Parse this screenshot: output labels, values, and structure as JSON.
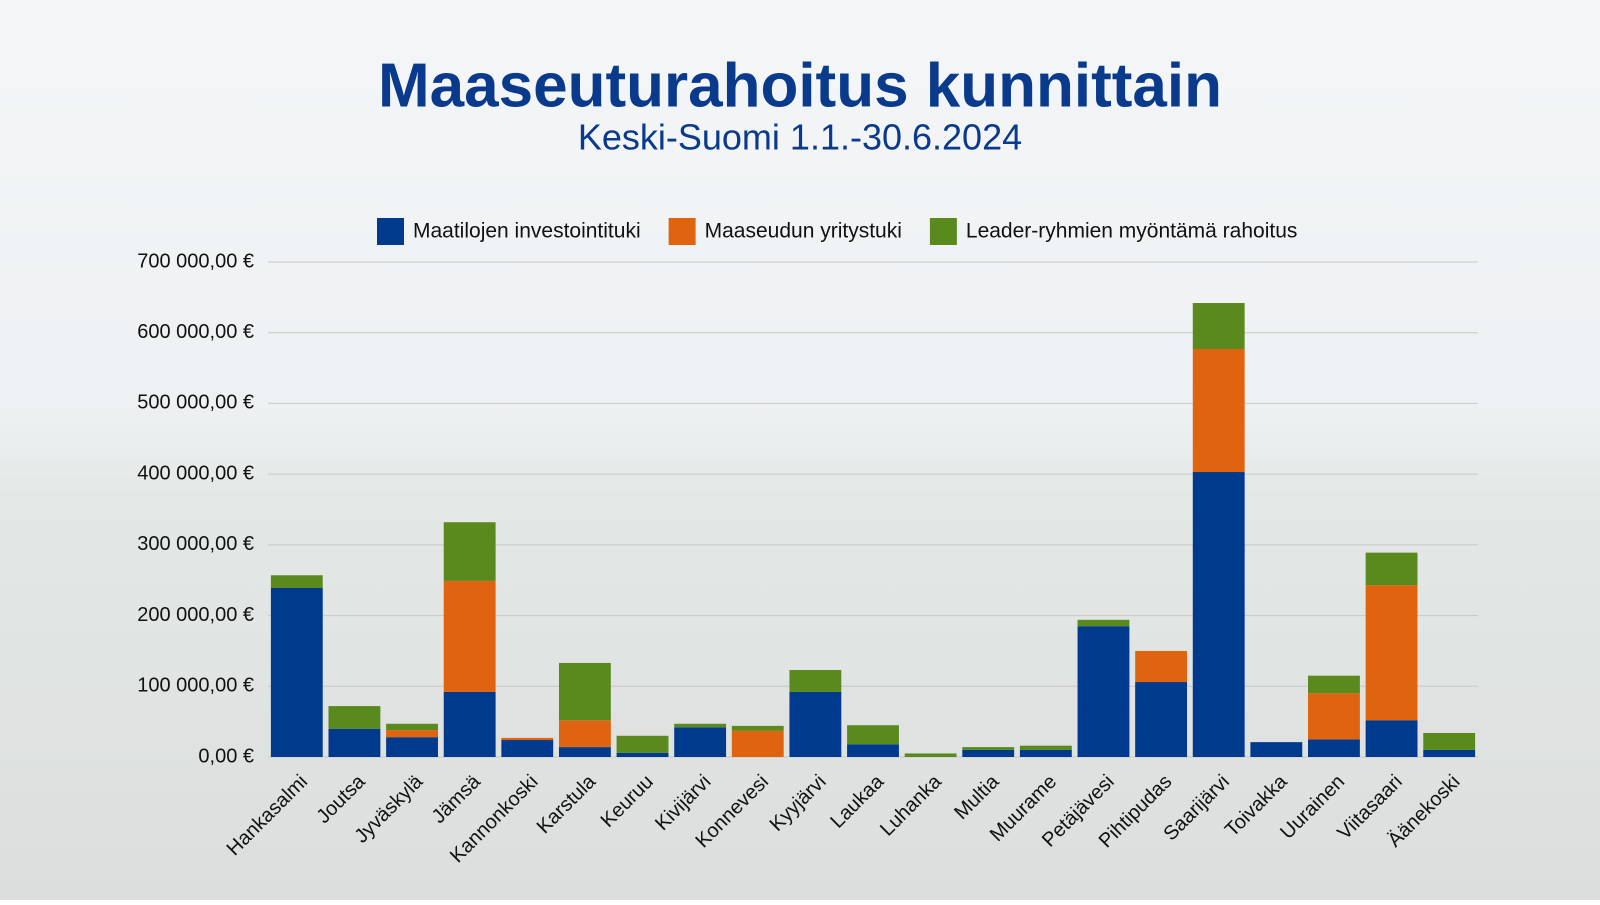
{
  "chart_data": {
    "type": "stacked-bar",
    "title": "Maaseuturahoitus kunnittain",
    "subtitle": "Keski-Suomi 1.1.-30.6.2024",
    "categories": [
      "Hankasalmi",
      "Joutsa",
      "Jyväskylä",
      "Jämsä",
      "Kannonkoski",
      "Karstula",
      "Keuruu",
      "Kivijärvi",
      "Konnevesi",
      "Kyyjärvi",
      "Laukaa",
      "Luhanka",
      "Multia",
      "Muurame",
      "Petäjävesi",
      "Pihtipudas",
      "Saarijärvi",
      "Toivakka",
      "Uurainen",
      "Viitasaari",
      "Äänekoski"
    ],
    "series": [
      {
        "name": "Maatilojen investointituki",
        "color": "#003a8c",
        "values": [
          239000,
          40000,
          28000,
          92000,
          24000,
          14000,
          6000,
          42000,
          0,
          92000,
          18000,
          0,
          10000,
          10000,
          185000,
          106000,
          403000,
          21000,
          25000,
          52000,
          10000
        ]
      },
      {
        "name": "Maaseudun yritystuki",
        "color": "#e06410",
        "values": [
          0,
          0,
          10000,
          157000,
          3000,
          38000,
          0,
          0,
          37000,
          0,
          0,
          0,
          0,
          0,
          0,
          44000,
          174000,
          0,
          65000,
          191000,
          0
        ]
      },
      {
        "name": "Leader-ryhmien myöntämä rahoitus",
        "color": "#5a8a1e",
        "values": [
          18000,
          32000,
          9000,
          83000,
          0,
          81000,
          24000,
          5000,
          7000,
          31000,
          27000,
          5000,
          4000,
          6000,
          9000,
          0,
          65000,
          0,
          25000,
          46000,
          24000
        ]
      }
    ],
    "ylim": [
      0,
      700000
    ],
    "yticks": [
      {
        "value": 0,
        "label": "0,00 €"
      },
      {
        "value": 100000,
        "label": "100 000,00 €"
      },
      {
        "value": 200000,
        "label": "200 000,00 €"
      },
      {
        "value": 300000,
        "label": "300 000,00 €"
      },
      {
        "value": 400000,
        "label": "400 000,00 €"
      },
      {
        "value": 500000,
        "label": "500 000,00 €"
      },
      {
        "value": 600000,
        "label": "600 000,00 €"
      },
      {
        "value": 700000,
        "label": "700 000,00 €"
      }
    ],
    "grid": true,
    "legend": "top"
  }
}
